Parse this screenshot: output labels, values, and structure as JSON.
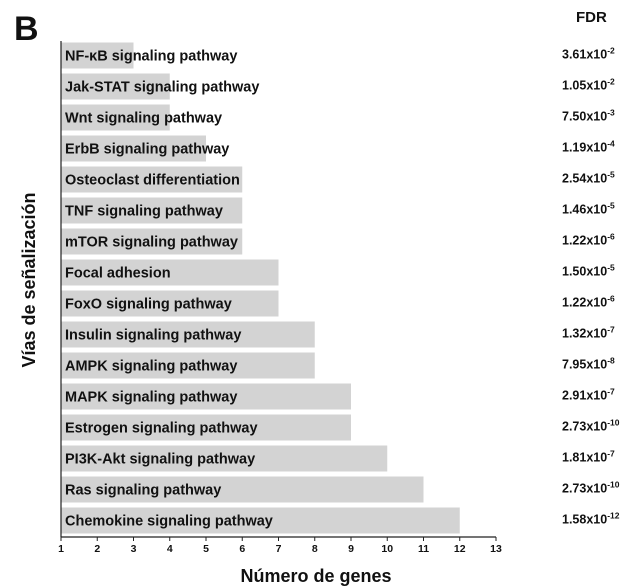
{
  "panel_label": "B",
  "fdr_header": "FDR",
  "chart_data": {
    "type": "bar",
    "orientation": "horizontal",
    "title": "",
    "xlabel": "Número de genes",
    "ylabel": "Vías de señalización",
    "xlim": [
      1,
      13
    ],
    "x_ticks": [
      1,
      2,
      3,
      4,
      5,
      6,
      7,
      8,
      9,
      10,
      11,
      12,
      13
    ],
    "bar_color": "#d3d3d3",
    "grid": false,
    "bars": [
      {
        "category": "NF-κB  signaling pathway",
        "value": 3,
        "fdr_mantissa": "3.61x10",
        "fdr_exponent": "-2"
      },
      {
        "category": "Jak-STAT signaling pathway",
        "value": 4,
        "fdr_mantissa": "1.05x10",
        "fdr_exponent": "-2"
      },
      {
        "category": "Wnt signaling pathway",
        "value": 4,
        "fdr_mantissa": "7.50x10",
        "fdr_exponent": "-3"
      },
      {
        "category": "ErbB signaling pathway",
        "value": 5,
        "fdr_mantissa": "1.19x10",
        "fdr_exponent": "-4"
      },
      {
        "category": "Osteoclast differentiation",
        "value": 6,
        "fdr_mantissa": "2.54x10",
        "fdr_exponent": "-5"
      },
      {
        "category": "TNF signaling pathway",
        "value": 6,
        "fdr_mantissa": "1.46x10",
        "fdr_exponent": "-5"
      },
      {
        "category": "mTOR signaling pathway",
        "value": 6,
        "fdr_mantissa": "1.22x10",
        "fdr_exponent": "-6"
      },
      {
        "category": "Focal adhesion",
        "value": 7,
        "fdr_mantissa": "1.50x10",
        "fdr_exponent": "-5"
      },
      {
        "category": "FoxO signaling pathway",
        "value": 7,
        "fdr_mantissa": "1.22x10",
        "fdr_exponent": "-6"
      },
      {
        "category": "Insulin signaling pathway",
        "value": 8,
        "fdr_mantissa": "1.32x10",
        "fdr_exponent": "-7"
      },
      {
        "category": "AMPK signaling pathway",
        "value": 8,
        "fdr_mantissa": "7.95x10",
        "fdr_exponent": "-8"
      },
      {
        "category": "MAPK signaling pathway",
        "value": 9,
        "fdr_mantissa": "2.91x10",
        "fdr_exponent": "-7"
      },
      {
        "category": "Estrogen signaling pathway",
        "value": 9,
        "fdr_mantissa": "2.73x10",
        "fdr_exponent": "-10"
      },
      {
        "category": "PI3K-Akt signaling pathway",
        "value": 10,
        "fdr_mantissa": "1.81x10",
        "fdr_exponent": "-7"
      },
      {
        "category": "Ras signaling pathway",
        "value": 11,
        "fdr_mantissa": "2.73x10",
        "fdr_exponent": "-10"
      },
      {
        "category": "Chemokine signaling pathway",
        "value": 12,
        "fdr_mantissa": "1.58x10",
        "fdr_exponent": "-12"
      }
    ]
  }
}
